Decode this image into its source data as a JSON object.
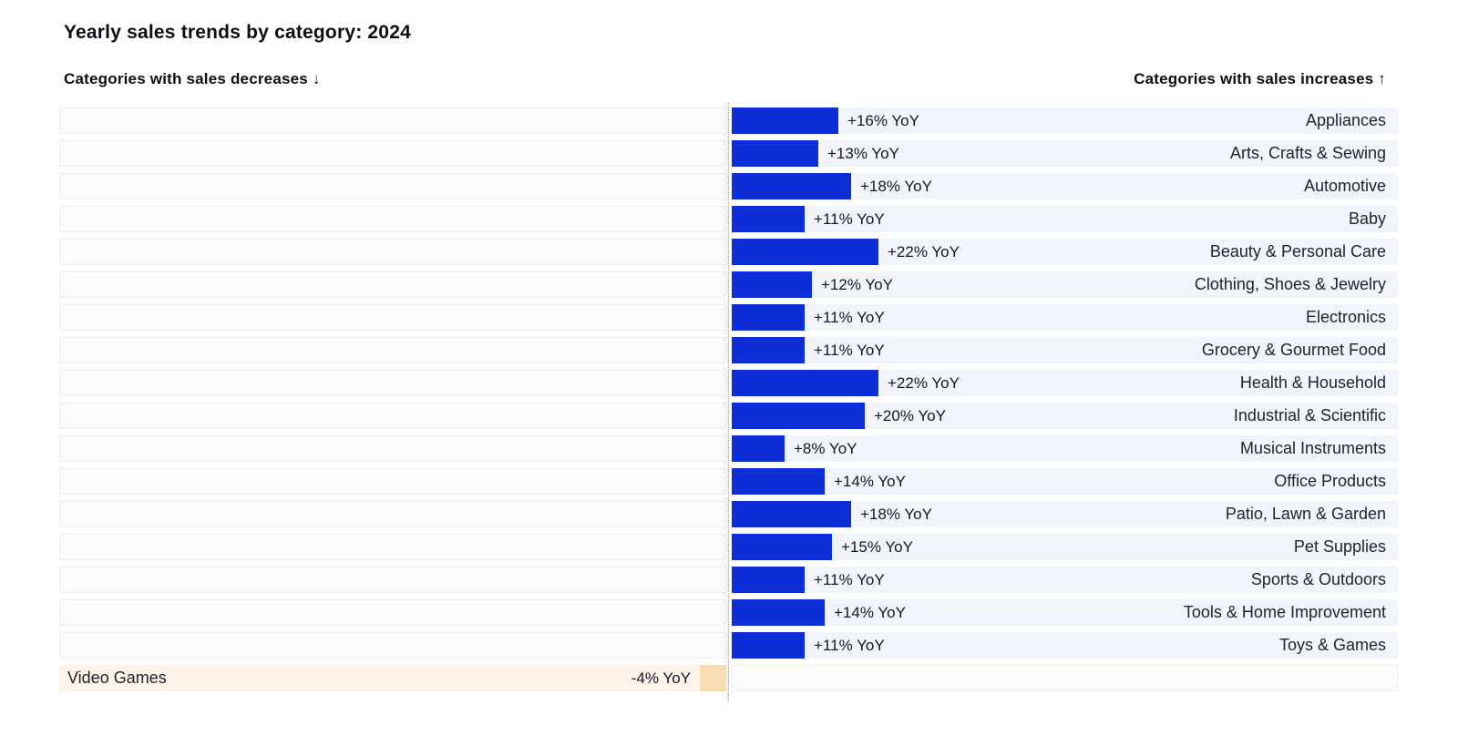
{
  "title": "Yearly sales trends by category: 2024",
  "headers": {
    "left": "Categories with sales decreases ↓",
    "right": "Categories with sales increases ↑"
  },
  "colors": {
    "increase_bar": "#0d2dd6",
    "increase_row_bg": "#f2f4fb",
    "decrease_bar": "#f8dcb3",
    "decrease_row_bg": "#fdf3e8",
    "empty_row_bg": "#fcfcfc",
    "empty_row_border": "#ececec",
    "axis_line": "#9b9b9b"
  },
  "chart_data": {
    "type": "bar",
    "orientation": "horizontal-diverging",
    "title": "Yearly sales trends by category: 2024",
    "unit": "% YoY",
    "left_section_label": "Categories with sales decreases ↓",
    "right_section_label": "Categories with sales increases ↑",
    "categories": [
      "Appliances",
      "Arts, Crafts & Sewing",
      "Automotive",
      "Baby",
      "Beauty & Personal Care",
      "Clothing, Shoes & Jewelry",
      "Electronics",
      "Grocery & Gourmet Food",
      "Health & Household",
      "Industrial & Scientific",
      "Musical Instruments",
      "Office Products",
      "Patio, Lawn & Garden",
      "Pet Supplies",
      "Sports & Outdoors",
      "Tools & Home Improvement",
      "Toys & Games",
      "Video Games"
    ],
    "values": [
      16,
      13,
      18,
      11,
      22,
      12,
      11,
      11,
      22,
      20,
      8,
      14,
      18,
      15,
      11,
      14,
      11,
      -4
    ],
    "value_labels": [
      "+16% YoY",
      "+13% YoY",
      "+18% YoY",
      "+11% YoY",
      "+22% YoY",
      "+12% YoY",
      "+11% YoY",
      "+11% YoY",
      "+22% YoY",
      "+20% YoY",
      "+8% YoY",
      "+14% YoY",
      "+18% YoY",
      "+15% YoY",
      "+11% YoY",
      "+14% YoY",
      "+11% YoY",
      "-4% YoY"
    ],
    "xlim": [
      -22,
      22
    ],
    "grid": "off",
    "legend": "none"
  }
}
